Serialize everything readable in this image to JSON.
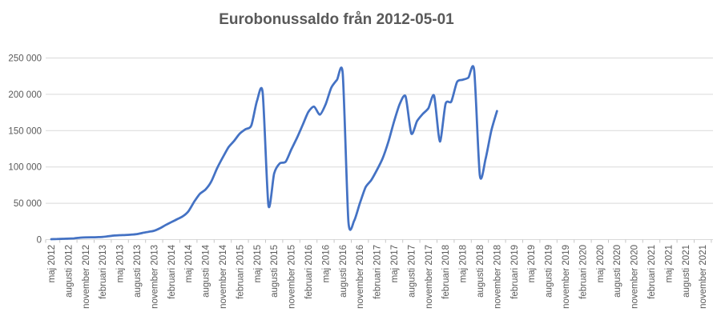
{
  "page": {
    "background": "#FFFFFF"
  },
  "chart_data": {
    "type": "line",
    "title": "Eurobonussaldo från 2012-05-01",
    "title_color": "#595959",
    "line_color": "#4472C4",
    "grid_color": "#D9D9D9",
    "tick_color": "#C6C6C6",
    "label_color": "#595959",
    "grid": true,
    "legend": "none",
    "smooth_line": true,
    "x_label_rotation_deg": -90,
    "ylim": [
      0,
      250000
    ],
    "y_tick_step": 50000,
    "y_tick_labels": [
      "0",
      "50 000",
      "100 000",
      "150 000",
      "200 000",
      "250 000"
    ],
    "x_tick_labels": [
      "maj 2012",
      "augusti 2012",
      "november 2012",
      "februari 2013",
      "maj 2013",
      "augusti 2013",
      "november 2013",
      "februari 2014",
      "maj 2014",
      "augusti 2014",
      "november 2014",
      "februari 2015",
      "maj 2015",
      "augusti 2015",
      "november 2015",
      "februari 2016",
      "maj 2016",
      "augusti 2016",
      "november 2016",
      "februari 2017",
      "maj 2017",
      "augusti 2017",
      "november 2017",
      "februari 2018",
      "maj 2018",
      "augusti 2018",
      "november 2018",
      "februari 2019",
      "maj 2019",
      "augusti 2019",
      "november 2019",
      "februari 2020",
      "maj 2020",
      "augusti 2020",
      "november 2020",
      "februari 2021",
      "maj 2021",
      "augusti 2021",
      "november 2021"
    ],
    "x": [
      "2012-05",
      "2012-06",
      "2012-07",
      "2012-08",
      "2012-09",
      "2012-10",
      "2012-11",
      "2012-12",
      "2013-01",
      "2013-02",
      "2013-03",
      "2013-04",
      "2013-05",
      "2013-06",
      "2013-07",
      "2013-08",
      "2013-09",
      "2013-10",
      "2013-11",
      "2013-12",
      "2014-01",
      "2014-02",
      "2014-03",
      "2014-04",
      "2014-05",
      "2014-06",
      "2014-07",
      "2014-08",
      "2014-09",
      "2014-10",
      "2014-11",
      "2014-12",
      "2015-01",
      "2015-02",
      "2015-03",
      "2015-04",
      "2015-05",
      "2015-06",
      "2015-07",
      "2015-08",
      "2015-09",
      "2015-10",
      "2015-11",
      "2015-12",
      "2016-01",
      "2016-02",
      "2016-03",
      "2016-04",
      "2016-05",
      "2016-06",
      "2016-07",
      "2016-08",
      "2016-09",
      "2016-10",
      "2016-11",
      "2016-12",
      "2017-01",
      "2017-02",
      "2017-03",
      "2017-04",
      "2017-05",
      "2017-06",
      "2017-07",
      "2017-08",
      "2017-09",
      "2017-10",
      "2017-11",
      "2017-12",
      "2018-01",
      "2018-02",
      "2018-03",
      "2018-04",
      "2018-05",
      "2018-06",
      "2018-07",
      "2018-08",
      "2018-09",
      "2018-10",
      "2018-11"
    ],
    "series": [
      {
        "name": "Eurobonussaldo",
        "values": [
          500,
          800,
          1100,
          1400,
          1700,
          2600,
          3100,
          3200,
          3300,
          3700,
          4600,
          5600,
          6100,
          6400,
          6900,
          7600,
          9200,
          10700,
          12200,
          15500,
          20000,
          24000,
          28000,
          32000,
          39000,
          52000,
          63000,
          69000,
          80000,
          98000,
          113000,
          127000,
          136000,
          146000,
          152000,
          157000,
          191000,
          202000,
          47000,
          91000,
          105000,
          107000,
          124000,
          140000,
          158000,
          176000,
          183000,
          172000,
          186000,
          209000,
          220000,
          229000,
          25000,
          26000,
          50000,
          72000,
          82000,
          96000,
          112000,
          135000,
          163000,
          187000,
          197000,
          146000,
          163000,
          173000,
          181000,
          198000,
          135000,
          187000,
          190000,
          217000,
          220000,
          223000,
          233000,
          88000,
          111000,
          150000,
          177000
        ]
      }
    ]
  }
}
